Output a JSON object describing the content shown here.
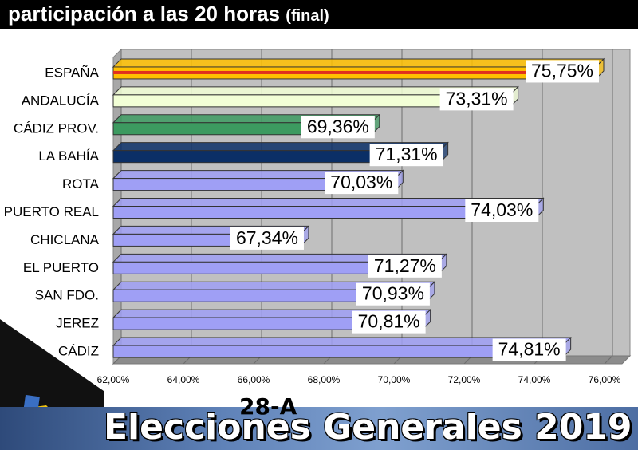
{
  "header": {
    "title": "participación a las 20 horas",
    "subtitle": "(final)"
  },
  "footer": {
    "edition": "28-A",
    "title": "Elecciones Generales 2019"
  },
  "colors": {
    "header_bg": "#000000",
    "plot_bg": "#c0c0c0",
    "default_bar": "#9f9ff5",
    "espana_bar": "#ffc000",
    "andalucia_bar": "#f2ffd6",
    "cadiz_prov_bar": "#3c9a60",
    "la_bahia_bar": "#0b2f66",
    "footer_bg": "#5f82b8"
  },
  "chart_data": {
    "type": "bar",
    "orientation": "horizontal",
    "categories": [
      "ESPAÑA",
      "ANDALUCÍA",
      "CÁDIZ PROV.",
      "LA BAHÍA",
      "ROTA",
      "PUERTO REAL",
      "CHICLANA",
      "EL PUERTO",
      "SAN FDO.",
      "JEREZ",
      "CÁDIZ"
    ],
    "values": [
      75.75,
      73.31,
      69.36,
      71.31,
      70.03,
      74.03,
      67.34,
      71.27,
      70.93,
      70.81,
      74.81
    ],
    "data_labels": [
      "75,75%",
      "73,31%",
      "69,36%",
      "71,31%",
      "70,03%",
      "74,03%",
      "67,34%",
      "71,27%",
      "70,93%",
      "70,81%",
      "74,81%"
    ],
    "bar_colors": [
      "#ffc000",
      "#f2ffd6",
      "#3c9a60",
      "#0b2f66",
      "#9f9ff5",
      "#9f9ff5",
      "#9f9ff5",
      "#9f9ff5",
      "#9f9ff5",
      "#9f9ff5",
      "#9f9ff5"
    ],
    "xlim": [
      62,
      76
    ],
    "xticks": [
      62,
      64,
      66,
      68,
      70,
      72,
      74,
      76
    ],
    "xtick_labels": [
      "62,00%",
      "64,00%",
      "66,00%",
      "68,00%",
      "70,00%",
      "72,00%",
      "74,00%",
      "76,00%"
    ],
    "xlabel": "",
    "ylabel": "",
    "grid": true,
    "legend": "none"
  }
}
